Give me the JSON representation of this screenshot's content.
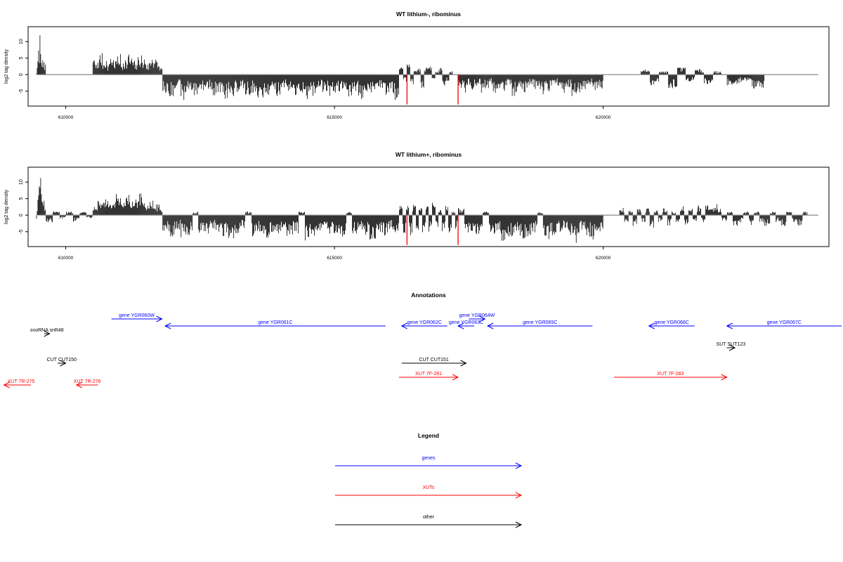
{
  "chart_data": [
    {
      "type": "bar",
      "title": "WT lithium-, ribominus",
      "ylabel": "log2 tag density",
      "xlim": [
        609300,
        624200
      ],
      "ylim": [
        -9.5,
        14.5
      ],
      "x_ticks": [
        610000,
        615000,
        620000
      ],
      "y_ticks": [
        10,
        5,
        0,
        -5
      ],
      "bar_color": "#000000",
      "highlight_color": "#ff0000",
      "baseline_range": [
        609500,
        624000
      ],
      "segments": [
        {
          "start": 609450,
          "end": 609630,
          "values": [
            0.5,
            2,
            5,
            4,
            7,
            9,
            13,
            12,
            10,
            8,
            9,
            6,
            4,
            3,
            2,
            5,
            3,
            2,
            4,
            2
          ]
        },
        {
          "start": 610500,
          "end": 611800,
          "values": [
            4.5,
            3,
            5,
            6,
            4,
            5,
            3,
            6,
            5,
            4,
            5,
            6,
            3,
            5,
            4,
            6,
            5,
            4,
            3,
            5,
            6,
            4,
            5,
            3,
            4,
            6,
            5,
            4,
            3,
            2
          ]
        },
        {
          "start": 611800,
          "end": 616200,
          "values": [
            -5,
            -6,
            -4,
            -7,
            -5,
            -6,
            -5,
            -4,
            -6,
            -5,
            -7,
            -6,
            -5,
            -4,
            -6,
            -5,
            -7,
            -6,
            -5,
            -6,
            -4,
            -5,
            -6,
            -5,
            -7,
            -6,
            -4,
            -5,
            -6,
            -5,
            -4,
            -6,
            -5,
            -7,
            -6,
            -5,
            -4,
            -6,
            -5,
            -7
          ]
        },
        {
          "start": 616200,
          "end": 617200,
          "values": [
            2,
            -2,
            3,
            -3,
            1,
            2,
            -4,
            2,
            3,
            -2,
            1,
            2,
            -3,
            -2,
            1
          ]
        },
        {
          "start": 617300,
          "end": 618000,
          "values": [
            -4,
            -5,
            -3,
            -5,
            -4,
            -3,
            -5,
            -4,
            -3,
            -5
          ]
        },
        {
          "start": 618000,
          "end": 620000,
          "values": [
            -4,
            -5,
            -3,
            -6,
            -4,
            -5,
            -3,
            -4,
            -6,
            -5,
            -4,
            -3,
            -5,
            -4,
            -6,
            -5,
            -4,
            -3,
            -5,
            -4
          ]
        },
        {
          "start": 620700,
          "end": 622200,
          "values": [
            1.5,
            -3,
            1,
            -4,
            2,
            -2,
            1.5,
            -3,
            1
          ]
        },
        {
          "start": 622300,
          "end": 623000,
          "values": [
            -3,
            -2,
            -4
          ]
        }
      ],
      "highlights": [
        {
          "x": 616350,
          "y": -9
        },
        {
          "x": 617300,
          "y": -9
        }
      ]
    },
    {
      "type": "bar",
      "title": "WT lithium+, ribominus",
      "ylabel": "log2 tag density",
      "xlim": [
        609300,
        624200
      ],
      "ylim": [
        -9.5,
        14.5
      ],
      "x_ticks": [
        610000,
        615000,
        620000
      ],
      "y_ticks": [
        10,
        5,
        0,
        -5
      ],
      "bar_color": "#000000",
      "highlight_color": "#ff0000",
      "baseline_range": [
        609500,
        624000
      ],
      "segments": [
        {
          "start": 609450,
          "end": 609630,
          "values": [
            -2,
            3,
            5,
            7,
            10,
            14,
            13,
            11,
            9,
            8,
            6,
            4,
            3,
            2,
            5,
            3,
            2,
            3
          ]
        },
        {
          "start": 609630,
          "end": 610500,
          "values": [
            -2,
            1,
            -1,
            1,
            -2,
            1,
            -1
          ]
        },
        {
          "start": 610500,
          "end": 611800,
          "values": [
            4,
            3,
            5,
            4,
            5,
            6,
            4,
            3,
            5,
            4,
            6,
            5,
            3,
            4,
            5,
            6,
            4,
            3,
            5,
            4,
            6,
            5,
            4,
            3,
            5,
            4,
            2,
            3,
            4,
            2
          ]
        },
        {
          "start": 611800,
          "end": 616200,
          "values": [
            -5,
            -6,
            -4,
            -7,
            -6,
            1,
            -5,
            -6,
            -4,
            -5,
            -6,
            -7,
            -5,
            -4,
            1,
            -6,
            -5,
            -7,
            -6,
            -5,
            -4,
            -6,
            -5,
            1,
            -7,
            -6,
            -5,
            -4,
            -6,
            -5,
            -6,
            1,
            -5,
            -4,
            -6,
            -7,
            -5,
            -6,
            -4,
            -5
          ]
        },
        {
          "start": 616200,
          "end": 617300,
          "values": [
            3,
            -5,
            4,
            -6,
            3,
            -4,
            2,
            -6,
            3,
            -5,
            4,
            -4,
            2,
            -5,
            3,
            -6,
            1,
            -4
          ]
        },
        {
          "start": 617300,
          "end": 620000,
          "values": [
            2,
            -6,
            -5,
            -7,
            1,
            -6,
            -5,
            -8,
            -6,
            -5,
            -7,
            -6,
            -5,
            1,
            -7,
            -6,
            -5,
            -4,
            -6,
            -8,
            -5,
            -6,
            -7,
            -5
          ]
        },
        {
          "start": 620300,
          "end": 621900,
          "values": [
            2,
            -2,
            1.5,
            -3,
            2,
            -2,
            2,
            -4,
            1.5,
            -2,
            2,
            -3,
            1,
            -2,
            2.5,
            -3,
            2,
            -2,
            3,
            -2
          ]
        },
        {
          "start": 621900,
          "end": 622200,
          "values": [
            3,
            2,
            3,
            2
          ]
        },
        {
          "start": 622200,
          "end": 623800,
          "values": [
            -2,
            1,
            -3,
            -2,
            1,
            -3,
            1,
            -2,
            -3,
            1,
            -2,
            -3,
            1,
            -2,
            -3,
            1
          ]
        }
      ],
      "highlights": [
        {
          "x": 616350,
          "y": -9
        },
        {
          "x": 617300,
          "y": -9
        }
      ]
    }
  ],
  "annotations": {
    "title": "Annotations",
    "xlim": [
      609300,
      624200
    ],
    "items": [
      {
        "label": "gene YGR060W",
        "kind": "gene",
        "strand": "+",
        "start": 610850,
        "end": 611790,
        "row": 0
      },
      {
        "label": "gene YGR061C",
        "kind": "gene",
        "strand": "-",
        "start": 611850,
        "end": 615950,
        "row": 1
      },
      {
        "label": "gene YGR062C",
        "kind": "gene",
        "strand": "-",
        "start": 616250,
        "end": 617100,
        "row": 1
      },
      {
        "label": "gene YGR063C",
        "kind": "gene",
        "strand": "-",
        "start": 617300,
        "end": 617600,
        "row": 1
      },
      {
        "label": "gene YGR064W",
        "kind": "gene",
        "strand": "+",
        "start": 617500,
        "end": 617800,
        "row": 0
      },
      {
        "label": "gene YGR065C",
        "kind": "gene",
        "strand": "-",
        "start": 617850,
        "end": 619800,
        "row": 1
      },
      {
        "label": "gene YGR066C",
        "kind": "gene",
        "strand": "-",
        "start": 620850,
        "end": 621700,
        "row": 1
      },
      {
        "label": "gene YGR067C",
        "kind": "gene",
        "strand": "-",
        "start": 622300,
        "end": 624700,
        "row": 1
      },
      {
        "label": "snoRNA snR48",
        "kind": "other",
        "strand": "+",
        "start": 609600,
        "end": 609700,
        "row": 2
      },
      {
        "label": "SUT SUT123",
        "kind": "other",
        "strand": "+",
        "start": 622300,
        "end": 622450,
        "row": 3
      },
      {
        "label": "CUT CUT150",
        "kind": "other",
        "strand": "+",
        "start": 609850,
        "end": 610000,
        "row": 4
      },
      {
        "label": "CUT CUT151",
        "kind": "other",
        "strand": "+",
        "start": 616250,
        "end": 617450,
        "row": 4
      },
      {
        "label": "XUT 7F-281",
        "kind": "XUT",
        "strand": "+",
        "start": 616200,
        "end": 617300,
        "row": 5
      },
      {
        "label": "XUT 7F-283",
        "kind": "XUT",
        "strand": "+",
        "start": 620200,
        "end": 622300,
        "row": 5
      },
      {
        "label": "XUT 7R-275",
        "kind": "XUT",
        "strand": "-",
        "start": 608850,
        "end": 609350,
        "row": 6
      },
      {
        "label": "XUT 7R-276",
        "kind": "XUT",
        "strand": "-",
        "start": 610200,
        "end": 610600,
        "row": 6
      }
    ]
  },
  "legend": {
    "title": "Legend",
    "items": [
      {
        "label": "genes",
        "kind": "gene"
      },
      {
        "label": "XUTs",
        "kind": "XUT"
      },
      {
        "label": "other",
        "kind": "other"
      }
    ]
  },
  "colors": {
    "gene": "#0000ff",
    "XUT": "#ff0000",
    "other": "#000000",
    "axis": "#000000",
    "baseline": "#888888"
  }
}
